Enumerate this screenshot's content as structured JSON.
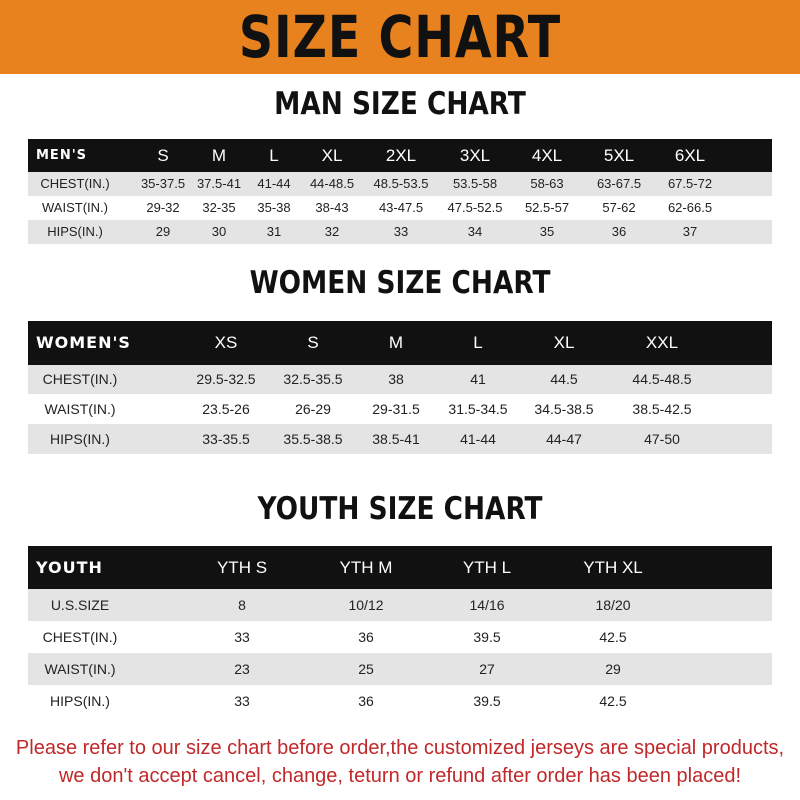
{
  "banner": {
    "title": "SIZE CHART",
    "color": "#e8821e"
  },
  "men": {
    "title": "MAN SIZE CHART",
    "header": [
      "MEN'S",
      "S",
      "M",
      "L",
      "XL",
      "2XL",
      "3XL",
      "4XL",
      "5XL",
      "6XL"
    ],
    "rows": [
      [
        "CHEST(IN.)",
        "35-37.5",
        "37.5-41",
        "41-44",
        "44-48.5",
        "48.5-53.5",
        "53.5-58",
        "58-63",
        "63-67.5",
        "67.5-72"
      ],
      [
        "WAIST(IN.)",
        "29-32",
        "32-35",
        "35-38",
        "38-43",
        "43-47.5",
        "47.5-52.5",
        "52.5-57",
        "57-62",
        "62-66.5"
      ],
      [
        "HIPS(IN.)",
        "29",
        "30",
        "31",
        "32",
        "33",
        "34",
        "35",
        "36",
        "37"
      ]
    ]
  },
  "women": {
    "title": "WOMEN SIZE CHART",
    "header": [
      "WOMEN'S",
      "XS",
      "S",
      "M",
      "L",
      "XL",
      "XXL"
    ],
    "rows": [
      [
        "CHEST(IN.)",
        "29.5-32.5",
        "32.5-35.5",
        "38",
        "41",
        "44.5",
        "44.5-48.5"
      ],
      [
        "WAIST(IN.)",
        "23.5-26",
        "26-29",
        "29-31.5",
        "31.5-34.5",
        "34.5-38.5",
        "38.5-42.5"
      ],
      [
        "HIPS(IN.)",
        "33-35.5",
        "35.5-38.5",
        "38.5-41",
        "41-44",
        "44-47",
        "47-50"
      ]
    ]
  },
  "youth": {
    "title": "YOUTH SIZE CHART",
    "header": [
      "YOUTH",
      "YTH S",
      "YTH M",
      "YTH L",
      "YTH XL"
    ],
    "rows": [
      [
        "U.S.SIZE",
        "8",
        "10/12",
        "14/16",
        "18/20"
      ],
      [
        "CHEST(IN.)",
        "33",
        "36",
        "39.5",
        "42.5"
      ],
      [
        "WAIST(IN.)",
        "23",
        "25",
        "27",
        "29"
      ],
      [
        "HIPS(IN.)",
        "33",
        "36",
        "39.5",
        "42.5"
      ]
    ]
  },
  "footer": {
    "line1": "Please refer to our size chart before order,the customized jerseys are special products,",
    "line2": "we don't accept cancel, change, teturn or refund after order has been placed!",
    "color": "#c0282a"
  }
}
